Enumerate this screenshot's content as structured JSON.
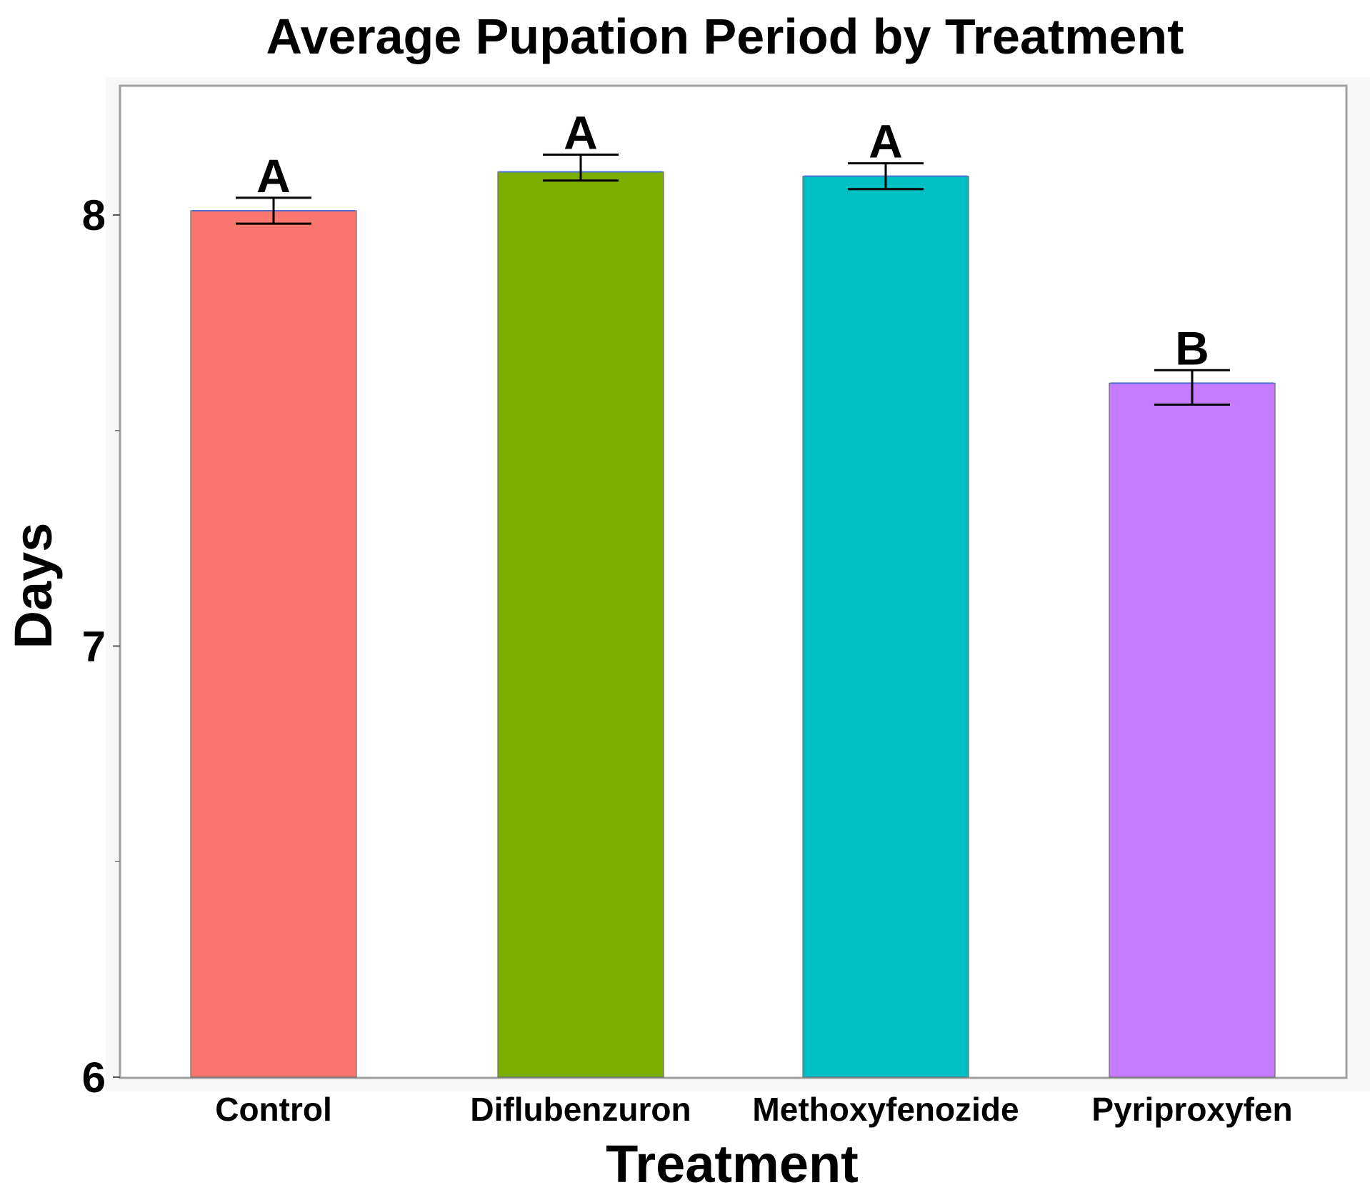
{
  "chart_data": {
    "type": "bar",
    "title": "Average Pupation Period by Treatment",
    "xlabel": "Treatment",
    "ylabel": "Days",
    "categories": [
      "Control",
      "Diflubenzuron",
      "Methoxyfenozide",
      "Pyriproxyfen"
    ],
    "values": [
      8.01,
      8.1,
      8.09,
      7.61
    ],
    "error_upper": [
      8.04,
      8.14,
      8.12,
      7.64
    ],
    "error_lower": [
      7.98,
      8.08,
      8.06,
      7.56
    ],
    "significance_letters": [
      "A",
      "A",
      "A",
      "B"
    ],
    "colors": [
      "#F8766D",
      "#7CAE00",
      "#00BFC4",
      "#C77CFF"
    ],
    "ylim": [
      6,
      8.25
    ],
    "yticks": [
      6,
      7,
      8
    ],
    "yticks_minor": [
      6.5,
      7.5
    ],
    "grid": false,
    "legend": "none"
  }
}
